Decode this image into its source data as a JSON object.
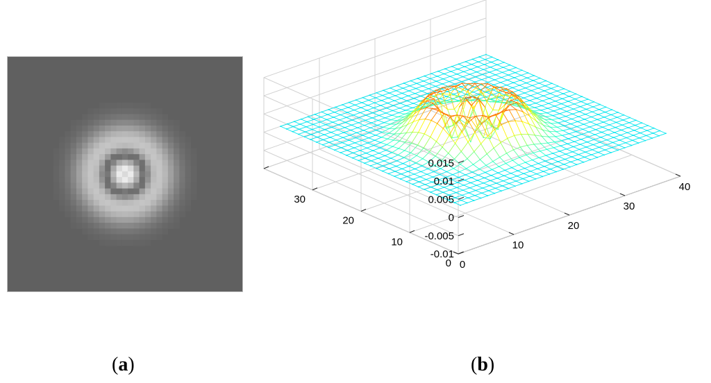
{
  "captions": {
    "a": "a",
    "b": "b"
  },
  "panel_a": {
    "type": "image",
    "colormap": "gray",
    "background": "#606060"
  },
  "chart_data": {
    "type": "mesh3d",
    "title": "",
    "xlabel": "",
    "ylabel": "",
    "zlabel": "",
    "x_range": [
      0,
      40
    ],
    "y_range": [
      0,
      40
    ],
    "z_range": [
      -0.01,
      0.015
    ],
    "x_ticks": [
      "0",
      "10",
      "20",
      "30",
      "40"
    ],
    "y_ticks": [
      "0",
      "10",
      "20",
      "30",
      "40"
    ],
    "z_ticks": [
      "-0.01",
      "-0.005",
      "0",
      "0.005",
      "0.01",
      "0.015"
    ],
    "grid": true,
    "colormap": "jet",
    "mesh_color": "#00e5ee",
    "grid_size": 31,
    "surface": {
      "function": "mexican-hat (negative Laplacian of Gaussian)",
      "center": [
        20,
        20
      ],
      "peak_value": 0.0125,
      "center_dip_value": 0.0105,
      "ring_min_value": -0.01,
      "flat_value": 0
    }
  }
}
